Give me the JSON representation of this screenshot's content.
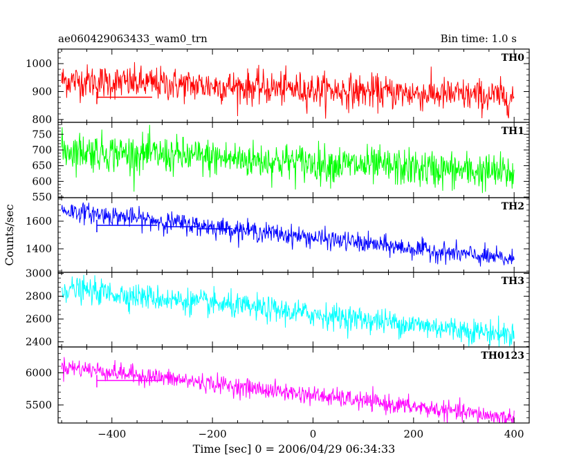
{
  "header": {
    "left_title": "ae060429063433_wam0_trn",
    "right_title": "Bin time: 1.0 s"
  },
  "chart_data": {
    "type": "line",
    "xlabel": "Time [sec] 0 = 2006/04/29 06:34:33",
    "ylabel": "Counts/sec",
    "xlim": [
      -507,
      430
    ],
    "x_ticks": [
      -400,
      -200,
      0,
      200,
      400
    ],
    "x_tick_labels": [
      "−400",
      "−200",
      "0",
      "200",
      "400"
    ],
    "samples": {
      "start": -500,
      "end": 400,
      "step": 1
    },
    "panels": [
      {
        "name": "TH0",
        "color": "#ff0000",
        "ylim": [
          790,
          1052
        ],
        "y_ticks": [
          800,
          900,
          1000
        ],
        "y_tick_labels": [
          "800",
          "900",
          "1000"
        ],
        "trend": [
          [
            -500,
            940
          ],
          [
            400,
            880
          ]
        ],
        "noise": 30,
        "flat_segments": [
          {
            "x0": -430,
            "x1": -320,
            "y": 880
          }
        ]
      },
      {
        "name": "TH1",
        "color": "#00ff00",
        "ylim": [
          548,
          788
        ],
        "y_ticks": [
          550,
          600,
          650,
          700,
          750
        ],
        "y_tick_labels": [
          "550",
          "600",
          "650",
          "700",
          "750"
        ],
        "trend": [
          [
            -500,
            700
          ],
          [
            400,
            625
          ]
        ],
        "noise": 30,
        "flat_segments": []
      },
      {
        "name": "TH2",
        "color": "#0000ff",
        "ylim": [
          1230,
          1770
        ],
        "y_ticks": [
          1400,
          1600
        ],
        "y_tick_labels": [
          "1400",
          "1600"
        ],
        "trend": [
          [
            -500,
            1680
          ],
          [
            400,
            1320
          ]
        ],
        "noise": 35,
        "flat_segments": [
          {
            "x0": -430,
            "x1": -310,
            "y": 1570
          },
          {
            "x0": -290,
            "x1": -230,
            "y": 1560
          },
          {
            "x0": -230,
            "x1": -160,
            "y": 1545
          }
        ]
      },
      {
        "name": "TH3",
        "color": "#00ffff",
        "ylim": [
          2355,
          3010
        ],
        "y_ticks": [
          2400,
          2600,
          2800,
          3000
        ],
        "y_tick_labels": [
          "2400",
          "2600",
          "2800",
          "3000"
        ],
        "trend": [
          [
            -500,
            2870
          ],
          [
            400,
            2460
          ]
        ],
        "noise": 55,
        "flat_segments": []
      },
      {
        "name": "TH0123",
        "color": "#ff00ff",
        "ylim": [
          5220,
          6400
        ],
        "y_ticks": [
          5500,
          6000
        ],
        "y_tick_labels": [
          "5500",
          "6000"
        ],
        "trend": [
          [
            -500,
            6100
          ],
          [
            400,
            5290
          ]
        ],
        "noise": 70,
        "flat_segments": [
          {
            "x0": -430,
            "x1": -300,
            "y": 5880
          }
        ]
      }
    ]
  }
}
